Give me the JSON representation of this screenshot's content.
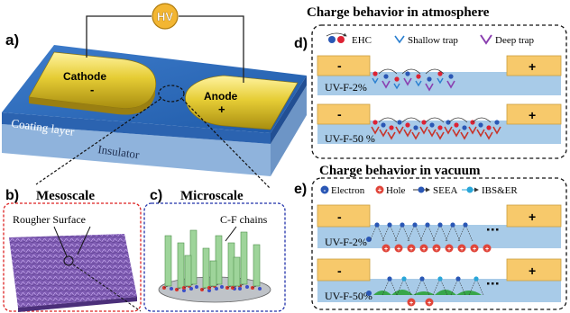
{
  "panels": {
    "a": {
      "label": "a)",
      "hv": "HV",
      "cathode": "Cathode",
      "cathode_sign": "-",
      "anode": "Anode",
      "anode_sign": "+",
      "coating": "Coating layer",
      "insulator": "Insulator"
    },
    "b": {
      "label": "b)",
      "title": "Mesoscale",
      "surface_label": "Rougher Surface"
    },
    "c": {
      "label": "c)",
      "title": "Microscale",
      "chains_label": "C-F chains"
    },
    "d": {
      "label": "d)",
      "title": "Charge behavior in atmosphere",
      "legend": {
        "ehc": "EHC",
        "shallow": "Shallow trap",
        "deep": "Deep trap"
      },
      "rows": [
        {
          "minus": "-",
          "plus": "+",
          "sample": "UV-F-2%"
        },
        {
          "minus": "-",
          "plus": "+",
          "sample": "UV-F-50 %"
        }
      ]
    },
    "e": {
      "label": "e)",
      "title": "Charge behavior in vacuum",
      "legend": {
        "electron": "Electron",
        "hole": "Hole",
        "seea": "SEEA",
        "ibs": "IBS&ER"
      },
      "rows": [
        {
          "minus": "-",
          "plus": "+",
          "sample": "UV-F-2%"
        },
        {
          "minus": "-",
          "plus": "+",
          "sample": "UV-F-50%"
        }
      ]
    }
  },
  "colors": {
    "electrode": "#d9c02a",
    "coating": "#2f6fc0",
    "insulator": "#8fb3dc",
    "hv": "#f3b632",
    "chain": "#9ed49a",
    "bar": "#a8cbe8"
  }
}
